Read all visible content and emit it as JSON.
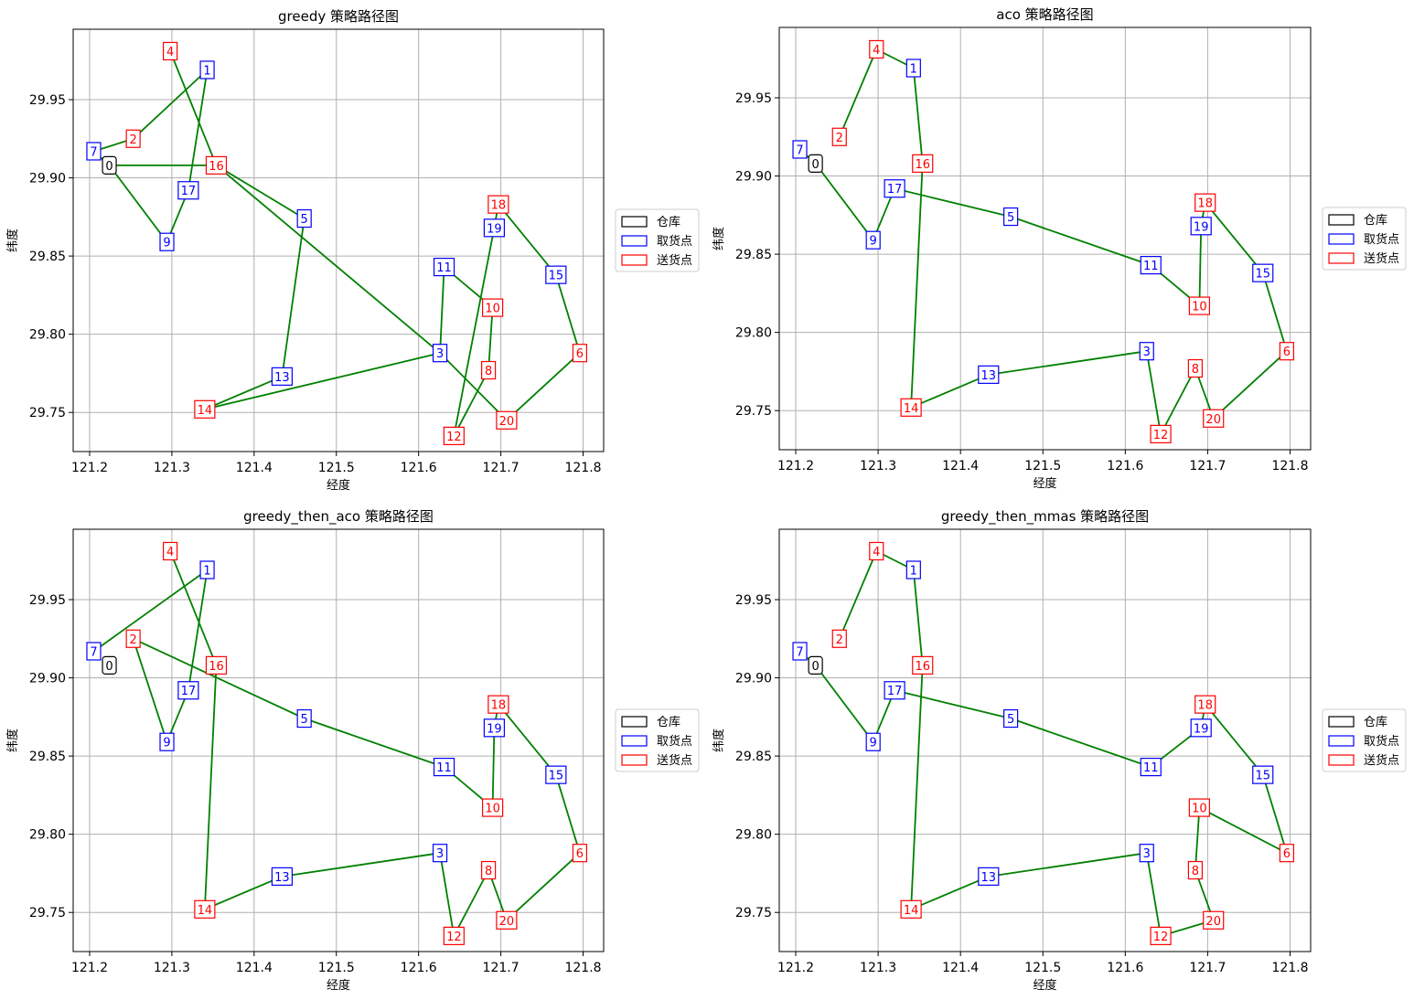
{
  "colors": {
    "route": "#008000",
    "depot": "#000000",
    "pickup": "#0000ff",
    "delivery": "#ff0000"
  },
  "chart_data": [
    {
      "type": "scatter",
      "title": "greedy 策略路径图",
      "xlabel": "经度",
      "ylabel": "纬度",
      "xlim": [
        121.18,
        121.825
      ],
      "ylim": [
        29.725,
        29.995
      ],
      "xticks": [
        "121.2",
        "121.3",
        "121.4",
        "121.5",
        "121.6",
        "121.7",
        "121.8"
      ],
      "yticks": [
        "29.75",
        "29.80",
        "29.85",
        "29.90",
        "29.95"
      ],
      "grid": true,
      "legend": {
        "placement": "right-outside",
        "entries": [
          {
            "label": "仓库",
            "kind": "depot"
          },
          {
            "label": "取货点",
            "kind": "pickup"
          },
          {
            "label": "送货点",
            "kind": "delivery"
          }
        ]
      },
      "nodes": [
        {
          "id": "0",
          "kind": "depot",
          "x": 121.224,
          "y": 29.908
        },
        {
          "id": "1",
          "kind": "pickup",
          "x": 121.343,
          "y": 29.969
        },
        {
          "id": "2",
          "kind": "delivery",
          "x": 121.253,
          "y": 29.925
        },
        {
          "id": "3",
          "kind": "pickup",
          "x": 121.626,
          "y": 29.788
        },
        {
          "id": "4",
          "kind": "delivery",
          "x": 121.298,
          "y": 29.981
        },
        {
          "id": "5",
          "kind": "pickup",
          "x": 121.461,
          "y": 29.874
        },
        {
          "id": "6",
          "kind": "delivery",
          "x": 121.796,
          "y": 29.788
        },
        {
          "id": "7",
          "kind": "pickup",
          "x": 121.205,
          "y": 29.917
        },
        {
          "id": "8",
          "kind": "delivery",
          "x": 121.685,
          "y": 29.777
        },
        {
          "id": "9",
          "kind": "pickup",
          "x": 121.294,
          "y": 29.859
        },
        {
          "id": "10",
          "kind": "delivery",
          "x": 121.69,
          "y": 29.817
        },
        {
          "id": "11",
          "kind": "pickup",
          "x": 121.631,
          "y": 29.843
        },
        {
          "id": "12",
          "kind": "delivery",
          "x": 121.643,
          "y": 29.735
        },
        {
          "id": "13",
          "kind": "pickup",
          "x": 121.434,
          "y": 29.773
        },
        {
          "id": "14",
          "kind": "delivery",
          "x": 121.34,
          "y": 29.752
        },
        {
          "id": "15",
          "kind": "pickup",
          "x": 121.767,
          "y": 29.838
        },
        {
          "id": "16",
          "kind": "delivery",
          "x": 121.354,
          "y": 29.908
        },
        {
          "id": "17",
          "kind": "pickup",
          "x": 121.32,
          "y": 29.892
        },
        {
          "id": "18",
          "kind": "delivery",
          "x": 121.697,
          "y": 29.883
        },
        {
          "id": "19",
          "kind": "pickup",
          "x": 121.692,
          "y": 29.868
        },
        {
          "id": "20",
          "kind": "delivery",
          "x": 121.707,
          "y": 29.745
        }
      ],
      "route": [
        "0",
        "9",
        "17",
        "1",
        "2",
        "7",
        "0",
        "16",
        "4",
        "16",
        "3",
        "20",
        "6",
        "15",
        "18",
        "19",
        "12",
        "8",
        "10",
        "11",
        "3",
        "14",
        "13",
        "5",
        "16"
      ]
    },
    {
      "type": "scatter",
      "title": "aco 策略路径图",
      "xlabel": "经度",
      "ylabel": "纬度",
      "xlim": [
        121.18,
        121.825
      ],
      "ylim": [
        29.725,
        29.995
      ],
      "xticks": [
        "121.2",
        "121.3",
        "121.4",
        "121.5",
        "121.6",
        "121.7",
        "121.8"
      ],
      "yticks": [
        "29.75",
        "29.80",
        "29.85",
        "29.90",
        "29.95"
      ],
      "grid": true,
      "legend": {
        "placement": "right-outside",
        "entries": [
          {
            "label": "仓库",
            "kind": "depot"
          },
          {
            "label": "取货点",
            "kind": "pickup"
          },
          {
            "label": "送货点",
            "kind": "delivery"
          }
        ]
      },
      "nodes": [
        {
          "id": "0",
          "kind": "depot",
          "x": 121.224,
          "y": 29.908
        },
        {
          "id": "1",
          "kind": "pickup",
          "x": 121.343,
          "y": 29.969
        },
        {
          "id": "2",
          "kind": "delivery",
          "x": 121.253,
          "y": 29.925
        },
        {
          "id": "3",
          "kind": "pickup",
          "x": 121.626,
          "y": 29.788
        },
        {
          "id": "4",
          "kind": "delivery",
          "x": 121.298,
          "y": 29.981
        },
        {
          "id": "5",
          "kind": "pickup",
          "x": 121.461,
          "y": 29.874
        },
        {
          "id": "6",
          "kind": "delivery",
          "x": 121.796,
          "y": 29.788
        },
        {
          "id": "7",
          "kind": "pickup",
          "x": 121.205,
          "y": 29.917
        },
        {
          "id": "8",
          "kind": "delivery",
          "x": 121.685,
          "y": 29.777
        },
        {
          "id": "9",
          "kind": "pickup",
          "x": 121.294,
          "y": 29.859
        },
        {
          "id": "10",
          "kind": "delivery",
          "x": 121.69,
          "y": 29.817
        },
        {
          "id": "11",
          "kind": "pickup",
          "x": 121.631,
          "y": 29.843
        },
        {
          "id": "12",
          "kind": "delivery",
          "x": 121.643,
          "y": 29.735
        },
        {
          "id": "13",
          "kind": "pickup",
          "x": 121.434,
          "y": 29.773
        },
        {
          "id": "14",
          "kind": "delivery",
          "x": 121.34,
          "y": 29.752
        },
        {
          "id": "15",
          "kind": "pickup",
          "x": 121.767,
          "y": 29.838
        },
        {
          "id": "16",
          "kind": "delivery",
          "x": 121.354,
          "y": 29.908
        },
        {
          "id": "17",
          "kind": "pickup",
          "x": 121.32,
          "y": 29.892
        },
        {
          "id": "18",
          "kind": "delivery",
          "x": 121.697,
          "y": 29.883
        },
        {
          "id": "19",
          "kind": "pickup",
          "x": 121.692,
          "y": 29.868
        },
        {
          "id": "20",
          "kind": "delivery",
          "x": 121.707,
          "y": 29.745
        }
      ],
      "route": [
        "0",
        "7",
        "0",
        "9",
        "17",
        "5",
        "11",
        "10",
        "19",
        "18",
        "15",
        "6",
        "20",
        "8",
        "12",
        "3",
        "13",
        "14",
        "16",
        "1",
        "4",
        "2"
      ]
    },
    {
      "type": "scatter",
      "title": "greedy_then_aco 策略路径图",
      "xlabel": "经度",
      "ylabel": "纬度",
      "xlim": [
        121.18,
        121.825
      ],
      "ylim": [
        29.725,
        29.995
      ],
      "xticks": [
        "121.2",
        "121.3",
        "121.4",
        "121.5",
        "121.6",
        "121.7",
        "121.8"
      ],
      "yticks": [
        "29.75",
        "29.80",
        "29.85",
        "29.90",
        "29.95"
      ],
      "grid": true,
      "legend": {
        "placement": "right-outside",
        "entries": [
          {
            "label": "仓库",
            "kind": "depot"
          },
          {
            "label": "取货点",
            "kind": "pickup"
          },
          {
            "label": "送货点",
            "kind": "delivery"
          }
        ]
      },
      "nodes": [
        {
          "id": "0",
          "kind": "depot",
          "x": 121.224,
          "y": 29.908
        },
        {
          "id": "1",
          "kind": "pickup",
          "x": 121.343,
          "y": 29.969
        },
        {
          "id": "2",
          "kind": "delivery",
          "x": 121.253,
          "y": 29.925
        },
        {
          "id": "3",
          "kind": "pickup",
          "x": 121.626,
          "y": 29.788
        },
        {
          "id": "4",
          "kind": "delivery",
          "x": 121.298,
          "y": 29.981
        },
        {
          "id": "5",
          "kind": "pickup",
          "x": 121.461,
          "y": 29.874
        },
        {
          "id": "6",
          "kind": "delivery",
          "x": 121.796,
          "y": 29.788
        },
        {
          "id": "7",
          "kind": "pickup",
          "x": 121.205,
          "y": 29.917
        },
        {
          "id": "8",
          "kind": "delivery",
          "x": 121.685,
          "y": 29.777
        },
        {
          "id": "9",
          "kind": "pickup",
          "x": 121.294,
          "y": 29.859
        },
        {
          "id": "10",
          "kind": "delivery",
          "x": 121.69,
          "y": 29.817
        },
        {
          "id": "11",
          "kind": "pickup",
          "x": 121.631,
          "y": 29.843
        },
        {
          "id": "12",
          "kind": "delivery",
          "x": 121.643,
          "y": 29.735
        },
        {
          "id": "13",
          "kind": "pickup",
          "x": 121.434,
          "y": 29.773
        },
        {
          "id": "14",
          "kind": "delivery",
          "x": 121.34,
          "y": 29.752
        },
        {
          "id": "15",
          "kind": "pickup",
          "x": 121.767,
          "y": 29.838
        },
        {
          "id": "16",
          "kind": "delivery",
          "x": 121.354,
          "y": 29.908
        },
        {
          "id": "17",
          "kind": "pickup",
          "x": 121.32,
          "y": 29.892
        },
        {
          "id": "18",
          "kind": "delivery",
          "x": 121.697,
          "y": 29.883
        },
        {
          "id": "19",
          "kind": "pickup",
          "x": 121.692,
          "y": 29.868
        },
        {
          "id": "20",
          "kind": "delivery",
          "x": 121.707,
          "y": 29.745
        }
      ],
      "route": [
        "7",
        "1",
        "17",
        "9",
        "2",
        "5",
        "11",
        "10",
        "19",
        "18",
        "15",
        "6",
        "20",
        "8",
        "12",
        "3",
        "13",
        "14",
        "16",
        "4"
      ]
    },
    {
      "type": "scatter",
      "title": "greedy_then_mmas 策略路径图",
      "xlabel": "经度",
      "ylabel": "纬度",
      "xlim": [
        121.18,
        121.825
      ],
      "ylim": [
        29.725,
        29.995
      ],
      "xticks": [
        "121.2",
        "121.3",
        "121.4",
        "121.5",
        "121.6",
        "121.7",
        "121.8"
      ],
      "yticks": [
        "29.75",
        "29.80",
        "29.85",
        "29.90",
        "29.95"
      ],
      "grid": true,
      "legend": {
        "placement": "right-outside",
        "entries": [
          {
            "label": "仓库",
            "kind": "depot"
          },
          {
            "label": "取货点",
            "kind": "pickup"
          },
          {
            "label": "送货点",
            "kind": "delivery"
          }
        ]
      },
      "nodes": [
        {
          "id": "0",
          "kind": "depot",
          "x": 121.224,
          "y": 29.908
        },
        {
          "id": "1",
          "kind": "pickup",
          "x": 121.343,
          "y": 29.969
        },
        {
          "id": "2",
          "kind": "delivery",
          "x": 121.253,
          "y": 29.925
        },
        {
          "id": "3",
          "kind": "pickup",
          "x": 121.626,
          "y": 29.788
        },
        {
          "id": "4",
          "kind": "delivery",
          "x": 121.298,
          "y": 29.981
        },
        {
          "id": "5",
          "kind": "pickup",
          "x": 121.461,
          "y": 29.874
        },
        {
          "id": "6",
          "kind": "delivery",
          "x": 121.796,
          "y": 29.788
        },
        {
          "id": "7",
          "kind": "pickup",
          "x": 121.205,
          "y": 29.917
        },
        {
          "id": "8",
          "kind": "delivery",
          "x": 121.685,
          "y": 29.777
        },
        {
          "id": "9",
          "kind": "pickup",
          "x": 121.294,
          "y": 29.859
        },
        {
          "id": "10",
          "kind": "delivery",
          "x": 121.69,
          "y": 29.817
        },
        {
          "id": "11",
          "kind": "pickup",
          "x": 121.631,
          "y": 29.843
        },
        {
          "id": "12",
          "kind": "delivery",
          "x": 121.643,
          "y": 29.735
        },
        {
          "id": "13",
          "kind": "pickup",
          "x": 121.434,
          "y": 29.773
        },
        {
          "id": "14",
          "kind": "delivery",
          "x": 121.34,
          "y": 29.752
        },
        {
          "id": "15",
          "kind": "pickup",
          "x": 121.767,
          "y": 29.838
        },
        {
          "id": "16",
          "kind": "delivery",
          "x": 121.354,
          "y": 29.908
        },
        {
          "id": "17",
          "kind": "pickup",
          "x": 121.32,
          "y": 29.892
        },
        {
          "id": "18",
          "kind": "delivery",
          "x": 121.697,
          "y": 29.883
        },
        {
          "id": "19",
          "kind": "pickup",
          "x": 121.692,
          "y": 29.868
        },
        {
          "id": "20",
          "kind": "delivery",
          "x": 121.707,
          "y": 29.745
        }
      ],
      "route": [
        "0",
        "7",
        "0",
        "9",
        "17",
        "5",
        "11",
        "19",
        "18",
        "15",
        "6",
        "10",
        "8",
        "20",
        "12",
        "3",
        "13",
        "14",
        "16",
        "1",
        "4",
        "2"
      ]
    }
  ]
}
